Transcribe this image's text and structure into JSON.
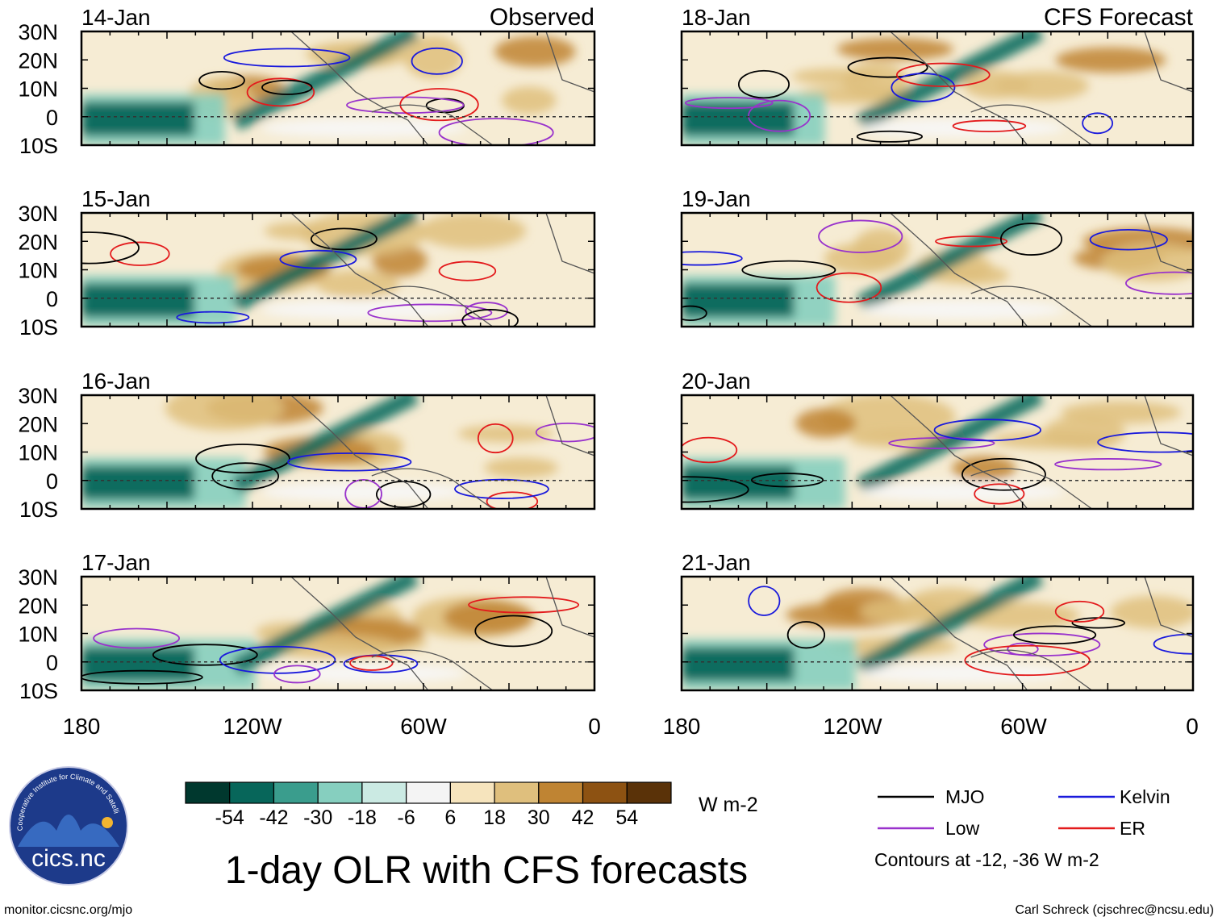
{
  "figure": {
    "title": "1-day OLR with CFS forecasts",
    "observed_label": "Observed",
    "forecast_label": "CFS Forecast",
    "units": "W m-2",
    "website": "monitor.cicsnc.org/mjo",
    "credit": "Carl Schreck (cjschrec@ncsu.edu)",
    "contour_note": "Contours at -12, -36 W m-2",
    "logo": {
      "ring_text": "Cooperative Institute for Climate and Satellites",
      "name": "cics.nc"
    }
  },
  "axes": {
    "lat_labels": [
      "30N",
      "20N",
      "10N",
      "0",
      "10S"
    ],
    "lon_labels": [
      "180",
      "120W",
      "60W",
      "0"
    ]
  },
  "panels": {
    "observed": [
      {
        "date": "14-Jan"
      },
      {
        "date": "15-Jan"
      },
      {
        "date": "16-Jan"
      },
      {
        "date": "17-Jan"
      }
    ],
    "forecast": [
      {
        "date": "18-Jan"
      },
      {
        "date": "19-Jan"
      },
      {
        "date": "20-Jan"
      },
      {
        "date": "21-Jan"
      }
    ]
  },
  "colorbar": {
    "tick_labels": [
      "-54",
      "-42",
      "-30",
      "-18",
      "-6",
      "6",
      "18",
      "30",
      "42",
      "54"
    ],
    "colors": [
      "#00382e",
      "#07665a",
      "#3a9d8d",
      "#86cfbf",
      "#cbeae3",
      "#f4f4f4",
      "#f6e4bd",
      "#dfbf7d",
      "#bf8433",
      "#8d5212",
      "#5a3208"
    ]
  },
  "legend": [
    {
      "label": "MJO",
      "color": "#000000"
    },
    {
      "label": "Kelvin",
      "color": "#1a1adc"
    },
    {
      "label": "Low",
      "color": "#9932cc"
    },
    {
      "label": "ER",
      "color": "#e31a1c"
    }
  ],
  "palette": {
    "wet_strong": "#07665a",
    "wet_light": "#86cfbf",
    "dry_light": "#f6e4bd",
    "dry_mid": "#dfbf7d",
    "dry_strong": "#bf8433",
    "land_outline": "#555555"
  }
}
